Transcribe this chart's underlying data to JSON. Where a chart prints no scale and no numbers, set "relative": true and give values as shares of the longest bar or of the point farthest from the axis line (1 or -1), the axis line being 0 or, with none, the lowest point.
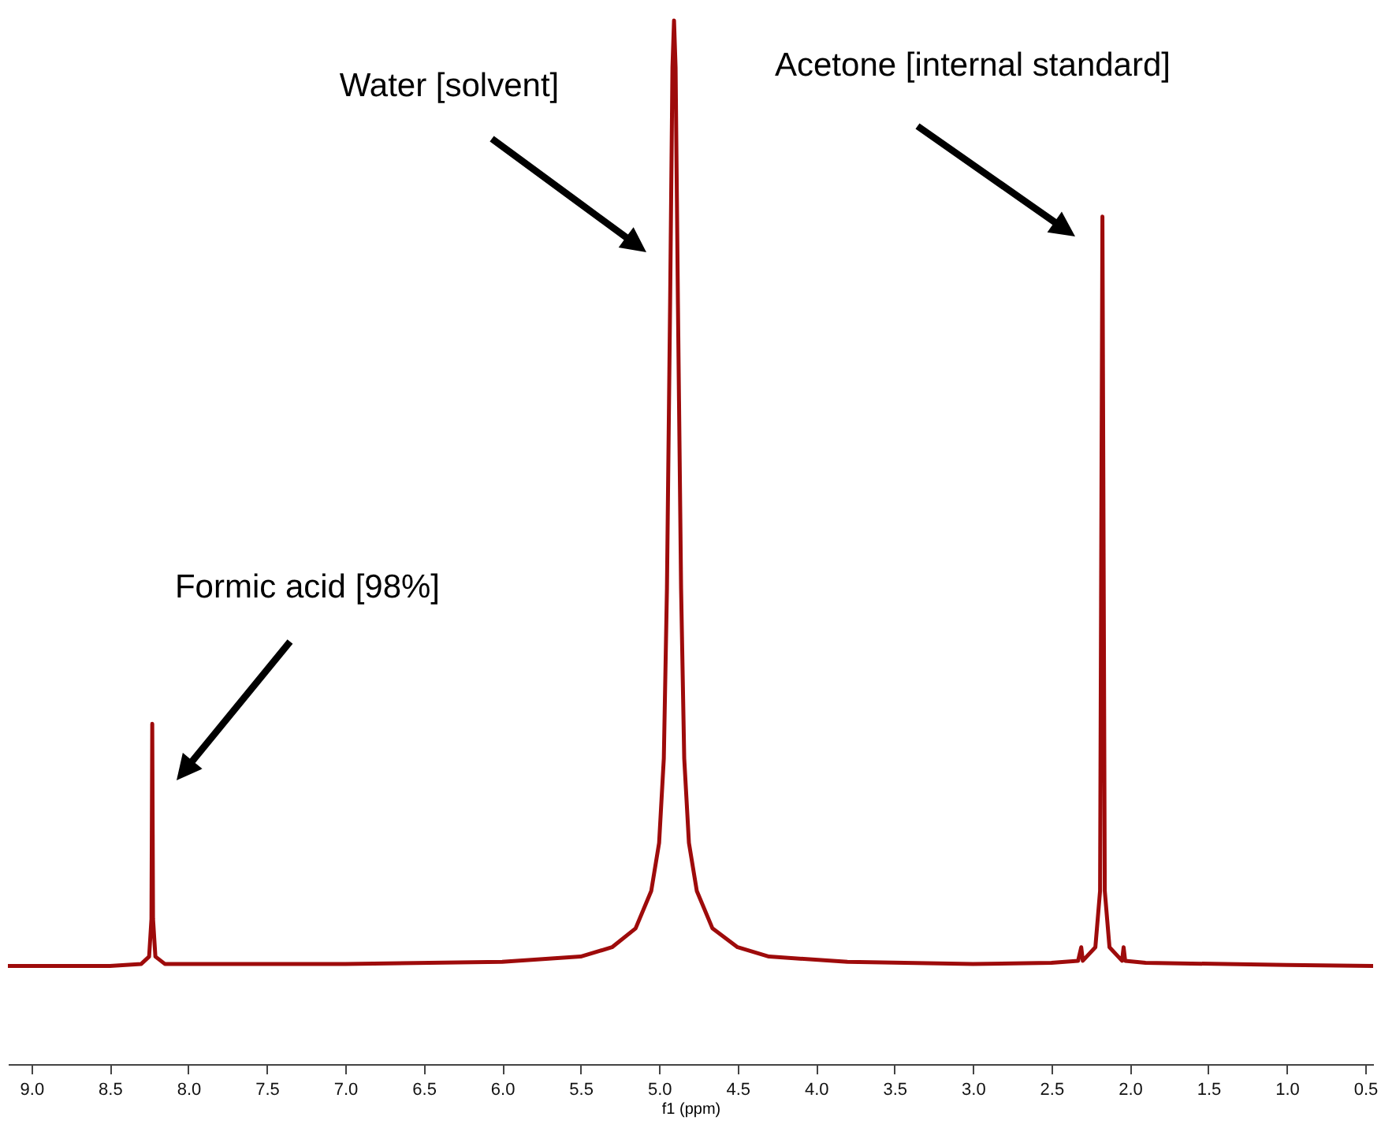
{
  "chart_data": {
    "type": "line",
    "relative": true,
    "xlabel": "f1 (ppm)",
    "tick_labels": "x",
    "grid": false,
    "xlim": [
      9.15,
      0.45
    ],
    "xticks": [
      {
        "value": 9.0,
        "label": "9.0"
      },
      8.5,
      {
        "value": 8.0,
        "label": "8.0"
      },
      7.5,
      {
        "value": 7.0,
        "label": "7.0"
      },
      6.5,
      {
        "value": 6.0,
        "label": "6.0"
      },
      5.5,
      {
        "value": 5.0,
        "label": "5.0"
      },
      4.5,
      {
        "value": 4.0,
        "label": "4.0"
      },
      3.5,
      {
        "value": 3.0,
        "label": "3.0"
      },
      2.5,
      {
        "value": 2.0,
        "label": "2.0"
      },
      1.5,
      {
        "value": 1.0,
        "label": "1.0"
      },
      0.5
    ],
    "series": [
      {
        "color": "#9e0b0b",
        "x": [
          9.15,
          8.5,
          8.3,
          8.25,
          8.235,
          8.23,
          8.225,
          8.21,
          8.15,
          7.0,
          6.0,
          5.5,
          5.3,
          5.15,
          5.05,
          5.0,
          4.97,
          4.95,
          4.93,
          4.915,
          4.905,
          4.895,
          4.88,
          4.86,
          4.84,
          4.81,
          4.76,
          4.66,
          4.5,
          4.3,
          3.8,
          3.0,
          2.5,
          2.33,
          2.31,
          2.3,
          2.22,
          2.19,
          2.175,
          2.16,
          2.13,
          2.05,
          2.04,
          2.03,
          1.9,
          1.0,
          0.45
        ],
        "values": [
          0.094,
          0.094,
          0.096,
          0.103,
          0.139,
          0.326,
          0.139,
          0.103,
          0.096,
          0.096,
          0.098,
          0.103,
          0.112,
          0.13,
          0.166,
          0.212,
          0.293,
          0.456,
          0.728,
          0.955,
          1.0,
          0.955,
          0.728,
          0.456,
          0.293,
          0.212,
          0.166,
          0.13,
          0.112,
          0.103,
          0.098,
          0.096,
          0.097,
          0.099,
          0.112,
          0.099,
          0.112,
          0.166,
          0.812,
          0.166,
          0.112,
          0.099,
          0.112,
          0.099,
          0.097,
          0.095,
          0.094
        ]
      }
    ],
    "annotations": [
      "Formic acid [98%]",
      "Water [solvent]",
      "Acetone [internal standard]"
    ]
  }
}
